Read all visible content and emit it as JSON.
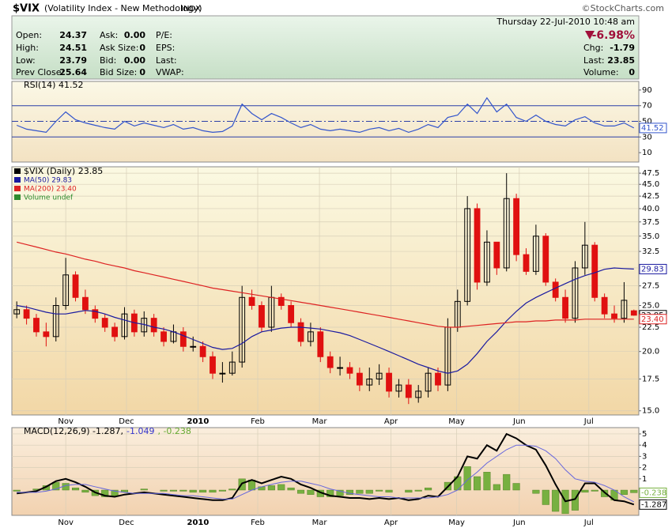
{
  "header": {
    "title": "$VIX",
    "subtitle": "(Volatility Index - New Methodology)",
    "exchange": "INDX",
    "datetime": "Thursday  22-Jul-2010  10:48 am",
    "copyright": "©StockCharts.com",
    "quote": {
      "col1": [
        [
          "Open:",
          "24.37"
        ],
        [
          "High:",
          "24.51"
        ],
        [
          "Low:",
          "23.79"
        ],
        [
          "Prev Close:",
          "25.64"
        ]
      ],
      "col2": [
        [
          "Ask:",
          "0.00"
        ],
        [
          "Ask Size:",
          "0"
        ],
        [
          "Bid:",
          "0.00"
        ],
        [
          "Bid Size:",
          "0"
        ]
      ],
      "col3": [
        "P/E:",
        "EPS:",
        "Last:",
        "VWAP:"
      ],
      "change_pct": "-6.98%",
      "col4": [
        [
          "Chg:",
          "-1.79"
        ],
        [
          "Last:",
          "23.85"
        ],
        [
          "Volume:",
          "0"
        ]
      ]
    }
  },
  "chart_data": [
    {
      "type": "line",
      "legend": [
        {
          "text": "RSI(14) 41.52",
          "color": "#000000"
        }
      ],
      "xlim": [
        -0.5,
        63.5
      ],
      "ylim": [
        -2,
        101
      ],
      "yticks": [
        10,
        30,
        50,
        70,
        90
      ],
      "ref_lines": [
        30,
        50,
        70
      ],
      "ref_color": "#2b3fa8",
      "series": [
        {
          "color": "#3355cc",
          "values": [
            45,
            40,
            38,
            36,
            50,
            62,
            52,
            48,
            45,
            42,
            40,
            50,
            44,
            48,
            45,
            42,
            46,
            40,
            42,
            38,
            36,
            37,
            44,
            72,
            60,
            52,
            60,
            55,
            48,
            42,
            46,
            40,
            38,
            40,
            38,
            36,
            40,
            42,
            38,
            41,
            36,
            40,
            46,
            42,
            55,
            58,
            72,
            60,
            80,
            62,
            72,
            55,
            50,
            58,
            50,
            46,
            44,
            52,
            56,
            48,
            44,
            44,
            48,
            41.52
          ],
          "tag": "41.52"
        }
      ]
    },
    {
      "type": "candlestick",
      "log_scale": true,
      "grid": true,
      "legend": [
        {
          "text": "$VIX (Daily) 23.85",
          "color": "#000000"
        },
        {
          "text": "MA(50) 29.83",
          "color": "#1a1aa0"
        },
        {
          "text": "MA(200) 23.40",
          "color": "#dd2222"
        },
        {
          "text": "Volume undef",
          "color": "#2e8b2e"
        }
      ],
      "xlim": [
        -0.5,
        63.5
      ],
      "ylim": [
        14.7,
        49
      ],
      "yticks": [
        {
          "value": 15,
          "label": "15.0"
        },
        17.5,
        {
          "value": 20,
          "label": "20.0"
        },
        22.5,
        {
          "value": 25,
          "label": "25.0"
        },
        27.5,
        {
          "value": 30,
          "label": "30.0"
        },
        32.5,
        {
          "value": 35,
          "label": "35.0"
        },
        37.5,
        {
          "value": 40,
          "label": "40.0"
        },
        42.5,
        {
          "value": 45,
          "label": "45.0"
        },
        47.5
      ],
      "xticks": [
        {
          "value": 5,
          "label": "Nov"
        },
        {
          "value": 11.2,
          "label": "Dec"
        },
        {
          "value": 18.5,
          "label": "2010"
        },
        {
          "value": 24.6,
          "label": "Feb"
        },
        {
          "value": 30.9,
          "label": "Mar"
        },
        {
          "value": 38.2,
          "label": "Apr"
        },
        {
          "value": 44.9,
          "label": "May"
        },
        {
          "value": 51.3,
          "label": "Jun"
        },
        {
          "value": 58.4,
          "label": "Jul"
        }
      ],
      "up_color": "#000000",
      "down_color": "#e01010",
      "tag": "23.85",
      "tag_color": "#000000",
      "open": [
        24,
        24.5,
        23.5,
        22,
        21.5,
        25,
        29,
        26,
        24.5,
        23.5,
        22.5,
        21.5,
        24,
        22,
        23.5,
        22,
        21,
        22,
        20.5,
        20.5,
        19.5,
        18,
        18,
        19,
        26,
        25,
        22.5,
        26,
        25,
        23,
        21,
        22,
        19.5,
        18.5,
        18.5,
        18,
        17,
        17.5,
        18,
        16.5,
        17,
        16,
        16.5,
        18,
        17,
        22.5,
        25.5,
        40,
        28,
        34,
        30,
        42,
        32,
        29.5,
        35,
        28,
        26,
        23.5,
        30,
        33.5,
        26,
        24,
        23.5,
        24.37
      ],
      "high": [
        25.5,
        25,
        24,
        23,
        26,
        31.5,
        29.5,
        27,
        25,
        24,
        23,
        24.8,
        24.5,
        24.3,
        24,
        22.5,
        22.8,
        22.5,
        21.5,
        21,
        20,
        19,
        20,
        27.5,
        27,
        25.5,
        27.5,
        26.5,
        25.5,
        23.5,
        23,
        22.5,
        20,
        19.5,
        19,
        18.5,
        18.5,
        18.8,
        18.5,
        17.5,
        17.5,
        17,
        18.5,
        18.5,
        23.5,
        27,
        42.5,
        41,
        36,
        34,
        47.5,
        43,
        33,
        37,
        35.5,
        28.5,
        27,
        31,
        37.5,
        34,
        26.5,
        25,
        28,
        24.51
      ],
      "low": [
        23.5,
        22.8,
        21.5,
        20.5,
        21,
        24.5,
        25.5,
        24,
        23,
        22,
        21,
        21.2,
        21.5,
        21.5,
        21.5,
        20.5,
        20.8,
        20,
        20,
        19,
        17.5,
        17.2,
        17.8,
        18.5,
        24.5,
        22,
        22,
        24.5,
        22.5,
        20.5,
        20.5,
        19,
        18,
        17.8,
        17.5,
        16.5,
        16.5,
        17,
        16,
        16,
        15.5,
        15.6,
        16,
        16.5,
        16.5,
        22,
        25,
        27,
        27.5,
        29,
        29.5,
        31,
        29,
        29,
        27.5,
        25.5,
        23,
        23,
        29,
        25.5,
        23.5,
        23,
        23,
        23.79
      ],
      "close": [
        24.5,
        23.5,
        22,
        21.5,
        25,
        29,
        26,
        24.5,
        23.5,
        22.5,
        21.5,
        24,
        22,
        23.5,
        22,
        21,
        22,
        20.5,
        20.5,
        19.5,
        18,
        18,
        19,
        26,
        25,
        22.5,
        26,
        25,
        23,
        21,
        22,
        19.5,
        18.5,
        18.5,
        18,
        17,
        17.5,
        18,
        16.5,
        17,
        16,
        16.5,
        18,
        17,
        22.5,
        25.5,
        40,
        28,
        34,
        30,
        42,
        32,
        29.5,
        35,
        28,
        26,
        23.5,
        30,
        33.5,
        26,
        24,
        23.5,
        25.64,
        23.85
      ],
      "series": [
        {
          "color": "#1a1aa0",
          "tag": "29.83",
          "values": [
            25,
            24.8,
            24.5,
            24.2,
            24,
            24,
            24.2,
            24.4,
            24.3,
            24,
            23.6,
            23.3,
            23,
            22.8,
            22.5,
            22.3,
            22,
            21.6,
            21.2,
            20.8,
            20.4,
            20.2,
            20.3,
            20.8,
            21.5,
            22,
            22.2,
            22.4,
            22.5,
            22.5,
            22.4,
            22.3,
            22.1,
            21.9,
            21.6,
            21.2,
            20.8,
            20.4,
            20,
            19.6,
            19.2,
            18.8,
            18.5,
            18.2,
            18,
            18.2,
            18.8,
            19.8,
            21,
            22,
            23.2,
            24.3,
            25.3,
            26,
            26.6,
            27.2,
            27.8,
            28.4,
            28.9,
            29.3,
            29.8,
            30,
            29.9,
            29.83
          ]
        },
        {
          "color": "#dd2222",
          "tag": "23.40",
          "values": [
            34,
            33.6,
            33.2,
            32.8,
            32.4,
            32.1,
            31.7,
            31.3,
            31,
            30.6,
            30.3,
            30,
            29.6,
            29.3,
            29,
            28.7,
            28.4,
            28.1,
            27.8,
            27.5,
            27.2,
            27,
            26.8,
            26.6,
            26.4,
            26.2,
            26,
            25.8,
            25.6,
            25.4,
            25.2,
            25,
            24.8,
            24.6,
            24.4,
            24.2,
            24,
            23.8,
            23.6,
            23.4,
            23.2,
            23,
            22.8,
            22.6,
            22.5,
            22.5,
            22.6,
            22.7,
            22.8,
            22.9,
            23,
            23.1,
            23.1,
            23.2,
            23.2,
            23.3,
            23.3,
            23.3,
            23.4,
            23.4,
            23.4,
            23.4,
            23.4,
            23.4
          ]
        }
      ]
    },
    {
      "type": "macd",
      "grid": true,
      "legend": [
        {
          "text": "MACD(12,26,9) -1.287,",
          "color": "#000000"
        },
        {
          "text": "-1.049",
          "color": "#3333cc"
        },
        {
          "text": ", -0.238",
          "color": "#66aa33"
        }
      ],
      "xlim": [
        -0.5,
        63.5
      ],
      "ylim": [
        -2.25,
        5.56
      ],
      "yticks": [
        1,
        2,
        3,
        4,
        5
      ],
      "xticks": [
        {
          "value": 5,
          "label": "Nov"
        },
        {
          "value": 11.2,
          "label": "Dec"
        },
        {
          "value": 18.5,
          "label": "2010"
        },
        {
          "value": 24.6,
          "label": "Feb"
        },
        {
          "value": 30.9,
          "label": "Mar"
        },
        {
          "value": 38.2,
          "label": "Apr"
        },
        {
          "value": 44.9,
          "label": "May"
        },
        {
          "value": 51.3,
          "label": "Jun"
        },
        {
          "value": 58.4,
          "label": "Jul"
        }
      ],
      "histogram": {
        "color": "#77b040",
        "tag": "-0.238",
        "values": [
          -0.1,
          0,
          0.1,
          0.4,
          0.7,
          0.6,
          0.2,
          -0.2,
          -0.5,
          -0.6,
          -0.5,
          -0.2,
          0,
          0.1,
          0,
          -0.1,
          -0.1,
          -0.1,
          -0.2,
          -0.2,
          -0.2,
          -0.1,
          0.1,
          1,
          0.9,
          0.3,
          0.4,
          0.5,
          0.2,
          -0.3,
          -0.4,
          -0.6,
          -0.6,
          -0.5,
          -0.4,
          -0.3,
          -0.3,
          -0.1,
          -0.2,
          0,
          -0.2,
          -0.1,
          0.2,
          0,
          0.7,
          1.2,
          2.1,
          1.2,
          1.6,
          0.5,
          1.4,
          0.6,
          0,
          -0.3,
          -1.3,
          -1.9,
          -2.1,
          -1.8,
          -0.2,
          -0.1,
          -0.6,
          -0.9,
          -0.4,
          -0.238
        ]
      },
      "series": [
        {
          "color": "#000000",
          "width": 2,
          "tag": "-1.287",
          "values": [
            -0.3,
            -0.2,
            -0.1,
            0.3,
            0.8,
            1,
            0.7,
            0.3,
            -0.2,
            -0.5,
            -0.6,
            -0.4,
            -0.3,
            -0.2,
            -0.3,
            -0.4,
            -0.5,
            -0.6,
            -0.7,
            -0.8,
            -0.9,
            -0.9,
            -0.7,
            0.6,
            0.9,
            0.6,
            0.9,
            1.2,
            1,
            0.5,
            0.2,
            -0.2,
            -0.5,
            -0.6,
            -0.7,
            -0.7,
            -0.8,
            -0.7,
            -0.8,
            -0.7,
            -0.9,
            -0.8,
            -0.5,
            -0.6,
            0.3,
            1.2,
            3,
            2.8,
            4,
            3.5,
            5,
            4.6,
            4,
            3.6,
            2.2,
            0.5,
            -1,
            -0.8,
            0.6,
            0.6,
            -0.2,
            -0.9,
            -1,
            -1.287
          ]
        },
        {
          "color": "#6666dd",
          "width": 1,
          "values": [
            -0.2,
            -0.2,
            -0.2,
            -0.1,
            0.1,
            0.4,
            0.5,
            0.5,
            0.3,
            0.1,
            -0.1,
            -0.2,
            -0.3,
            -0.3,
            -0.3,
            -0.3,
            -0.4,
            -0.5,
            -0.5,
            -0.6,
            -0.7,
            -0.8,
            -0.8,
            -0.4,
            0,
            0.3,
            0.5,
            0.7,
            0.8,
            0.8,
            0.6,
            0.4,
            0.1,
            -0.1,
            -0.3,
            -0.4,
            -0.5,
            -0.6,
            -0.6,
            -0.7,
            -0.7,
            -0.7,
            -0.7,
            -0.6,
            -0.4,
            0,
            0.9,
            1.6,
            2.4,
            3,
            3.6,
            4,
            4,
            3.9,
            3.5,
            2.8,
            1.8,
            1,
            0.8,
            0.7,
            0.4,
            0,
            -0.6,
            -1.049
          ]
        }
      ]
    }
  ]
}
